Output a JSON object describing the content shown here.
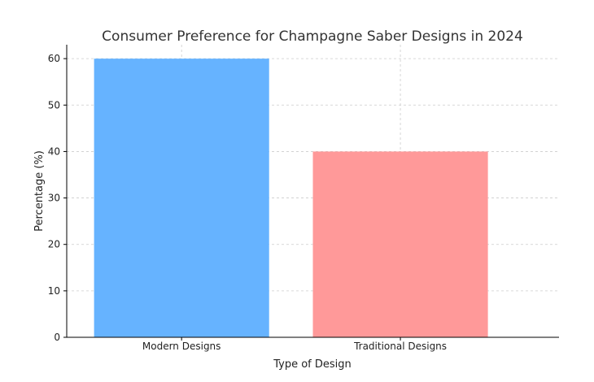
{
  "chart_data": {
    "type": "bar",
    "title": "Consumer Preference for Champagne Saber Designs in 2024",
    "xlabel": "Type of Design",
    "ylabel": "Percentage (%)",
    "categories": [
      "Modern Designs",
      "Traditional Designs"
    ],
    "values": [
      60,
      40
    ],
    "colors": [
      "#66b3ff",
      "#ff9999"
    ],
    "ylim": [
      0,
      63
    ],
    "yticks": [
      0,
      10,
      20,
      30,
      40,
      50,
      60
    ],
    "grid": true
  }
}
